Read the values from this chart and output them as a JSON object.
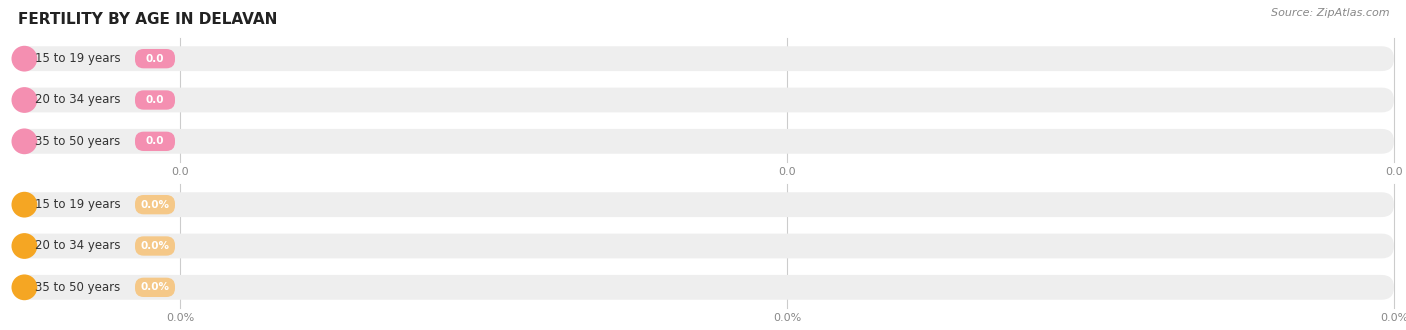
{
  "title": "FERTILITY BY AGE IN DELAVAN",
  "source": "Source: ZipAtlas.com",
  "sections": [
    {
      "categories": [
        "15 to 19 years",
        "20 to 34 years",
        "35 to 50 years"
      ],
      "values": [
        0.0,
        0.0,
        0.0
      ],
      "bar_bg_color": "#eeeeee",
      "circle_color": "#f48fb1",
      "value_bg_color": "#f48fb1",
      "value_text_color": "#ffffff",
      "value_labels": [
        "0.0",
        "0.0",
        "0.0"
      ],
      "x_axis_labels": [
        "0.0",
        "0.0",
        "0.0"
      ]
    },
    {
      "categories": [
        "15 to 19 years",
        "20 to 34 years",
        "35 to 50 years"
      ],
      "values": [
        0.0,
        0.0,
        0.0
      ],
      "bar_bg_color": "#eeeeee",
      "circle_color": "#f5a623",
      "value_bg_color": "#f5c888",
      "value_text_color": "#ffffff",
      "value_labels": [
        "0.0%",
        "0.0%",
        "0.0%"
      ],
      "x_axis_labels": [
        "0.0%",
        "0.0%",
        "0.0%"
      ]
    }
  ],
  "background_color": "#ffffff",
  "title_fontsize": 11,
  "label_fontsize": 8.5,
  "value_fontsize": 7.5,
  "tick_fontsize": 8,
  "source_fontsize": 8,
  "label_color": "#333333",
  "tick_color": "#888888",
  "source_color": "#888888",
  "gridline_color": "#cccccc"
}
